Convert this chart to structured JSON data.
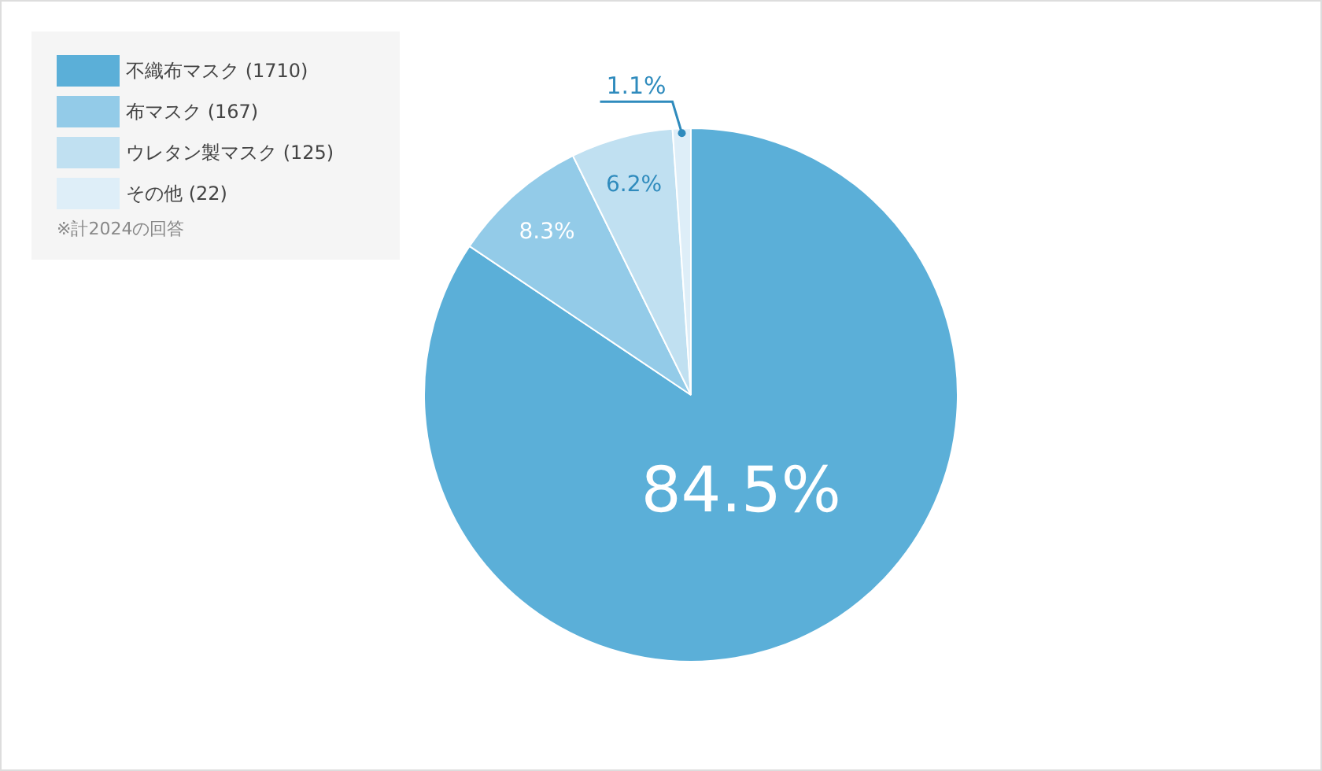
{
  "chart_data": {
    "type": "pie",
    "categories": [
      "不織布マスク (1710)",
      "布マスク (167)",
      "ウレタン製マスク (125)",
      "その他 (22)"
    ],
    "values": [
      84.5,
      8.3,
      6.2,
      1.1
    ],
    "colors": [
      "#5bafd8",
      "#93cbe8",
      "#c0e0f1",
      "#deeef8"
    ],
    "value_labels": [
      "84.5%",
      "8.3%",
      "6.2%",
      "1.1%"
    ],
    "legend": "top left",
    "annotations": [
      "※計2024の回答"
    ]
  }
}
